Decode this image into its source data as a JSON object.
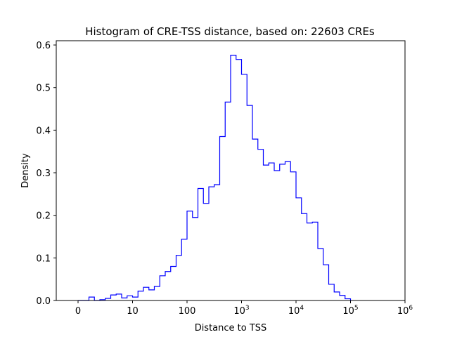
{
  "chart_data": {
    "type": "histogram",
    "title": "Histogram of CRE-TSS distance, based on: 22603 CREs",
    "xlabel": "Distance to TSS",
    "ylabel": "Density",
    "x_scale": "symlog",
    "xlim": [
      -0.4,
      6.0
    ],
    "ylim": [
      0,
      0.61
    ],
    "grid": false,
    "line_color": "#0000ff",
    "x_ticks": [
      {
        "value": 0,
        "label": "0"
      },
      {
        "value": 10,
        "label": "10"
      },
      {
        "value": 100,
        "label": "100"
      },
      {
        "value": 1000,
        "label": "10",
        "sup": "3"
      },
      {
        "value": 10000,
        "label": "10",
        "sup": "4"
      },
      {
        "value": 100000,
        "label": "10",
        "sup": "5"
      },
      {
        "value": 1000000,
        "label": "10",
        "sup": "6"
      }
    ],
    "y_ticks": [
      0.0,
      0.1,
      0.2,
      0.3,
      0.4,
      0.5,
      0.6
    ],
    "y_tick_labels": [
      "0.0",
      "0.1",
      "0.2",
      "0.3",
      "0.4",
      "0.5",
      "0.6"
    ],
    "bins_start": 0,
    "bin_width_decades": 0.1,
    "densities": [
      0,
      0,
      0.008,
      0,
      0.002,
      0.005,
      0.013,
      0.015,
      0.006,
      0.011,
      0.008,
      0.022,
      0.031,
      0.025,
      0.033,
      0.058,
      0.068,
      0.08,
      0.106,
      0.144,
      0.21,
      0.195,
      0.263,
      0.228,
      0.267,
      0.272,
      0.385,
      0.466,
      0.576,
      0.566,
      0.531,
      0.458,
      0.379,
      0.355,
      0.318,
      0.323,
      0.305,
      0.32,
      0.326,
      0.302,
      0.241,
      0.204,
      0.182,
      0.184,
      0.122,
      0.084,
      0.038,
      0.02,
      0.012,
      0.004
    ]
  }
}
